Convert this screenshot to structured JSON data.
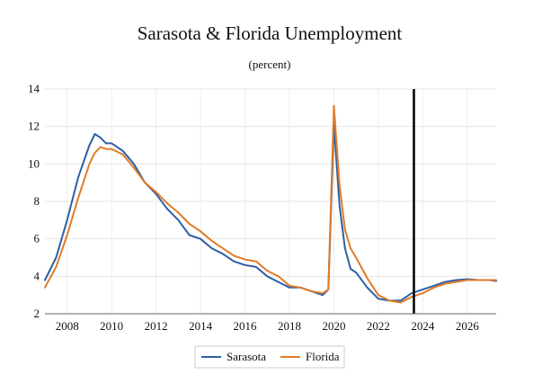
{
  "chart_data": {
    "type": "line",
    "title": "Sarasota & Florida Unemployment",
    "subtitle": "(percent)",
    "xlabel": "",
    "ylabel": "",
    "xlim": [
      2007.0,
      2027.3
    ],
    "ylim": [
      2,
      14
    ],
    "x_ticks": [
      2008,
      2010,
      2012,
      2014,
      2016,
      2018,
      2020,
      2022,
      2024,
      2026
    ],
    "y_ticks": [
      2,
      4,
      6,
      8,
      10,
      12,
      14
    ],
    "grid": true,
    "legend_position": "bottom",
    "vertical_marker_x": 2023.6,
    "series": [
      {
        "name": "Sarasota",
        "color": "#2e5fa3",
        "x": [
          2007.0,
          2007.5,
          2008.0,
          2008.5,
          2009.0,
          2009.25,
          2009.5,
          2009.75,
          2010.0,
          2010.5,
          2011.0,
          2011.5,
          2012.0,
          2012.5,
          2013.0,
          2013.5,
          2014.0,
          2014.5,
          2015.0,
          2015.5,
          2016.0,
          2016.5,
          2017.0,
          2017.5,
          2018.0,
          2018.5,
          2019.0,
          2019.5,
          2019.75,
          2020.0,
          2020.25,
          2020.5,
          2020.75,
          2021.0,
          2021.5,
          2022.0,
          2022.5,
          2023.0,
          2023.5,
          2024.0,
          2024.5,
          2025.0,
          2025.5,
          2026.0,
          2026.5,
          2027.0,
          2027.3
        ],
        "values": [
          3.8,
          5.0,
          7.0,
          9.3,
          11.0,
          11.6,
          11.4,
          11.1,
          11.1,
          10.7,
          10.0,
          9.0,
          8.4,
          7.6,
          7.0,
          6.2,
          6.0,
          5.5,
          5.2,
          4.8,
          4.6,
          4.5,
          4.0,
          3.7,
          3.4,
          3.4,
          3.2,
          3.0,
          3.3,
          12.1,
          7.8,
          5.5,
          4.4,
          4.2,
          3.4,
          2.8,
          2.7,
          2.7,
          3.1,
          3.3,
          3.5,
          3.7,
          3.8,
          3.85,
          3.8,
          3.8,
          3.75
        ]
      },
      {
        "name": "Florida",
        "color": "#e07b2a",
        "x": [
          2007.0,
          2007.5,
          2008.0,
          2008.5,
          2009.0,
          2009.25,
          2009.5,
          2009.75,
          2010.0,
          2010.5,
          2011.0,
          2011.5,
          2012.0,
          2012.5,
          2013.0,
          2013.5,
          2014.0,
          2014.5,
          2015.0,
          2015.5,
          2016.0,
          2016.5,
          2017.0,
          2017.5,
          2018.0,
          2018.5,
          2019.0,
          2019.5,
          2019.75,
          2020.0,
          2020.25,
          2020.5,
          2020.75,
          2021.0,
          2021.5,
          2022.0,
          2022.5,
          2023.0,
          2023.5,
          2024.0,
          2024.5,
          2025.0,
          2025.5,
          2026.0,
          2026.5,
          2027.0,
          2027.3
        ],
        "values": [
          3.4,
          4.5,
          6.2,
          8.2,
          10.0,
          10.6,
          10.9,
          10.8,
          10.8,
          10.5,
          9.8,
          9.0,
          8.5,
          7.9,
          7.4,
          6.8,
          6.4,
          5.9,
          5.5,
          5.1,
          4.9,
          4.8,
          4.3,
          4.0,
          3.5,
          3.4,
          3.2,
          3.1,
          3.3,
          13.1,
          8.9,
          6.5,
          5.5,
          5.0,
          3.9,
          3.0,
          2.7,
          2.6,
          2.9,
          3.1,
          3.4,
          3.6,
          3.7,
          3.8,
          3.8,
          3.8,
          3.8
        ]
      }
    ]
  }
}
